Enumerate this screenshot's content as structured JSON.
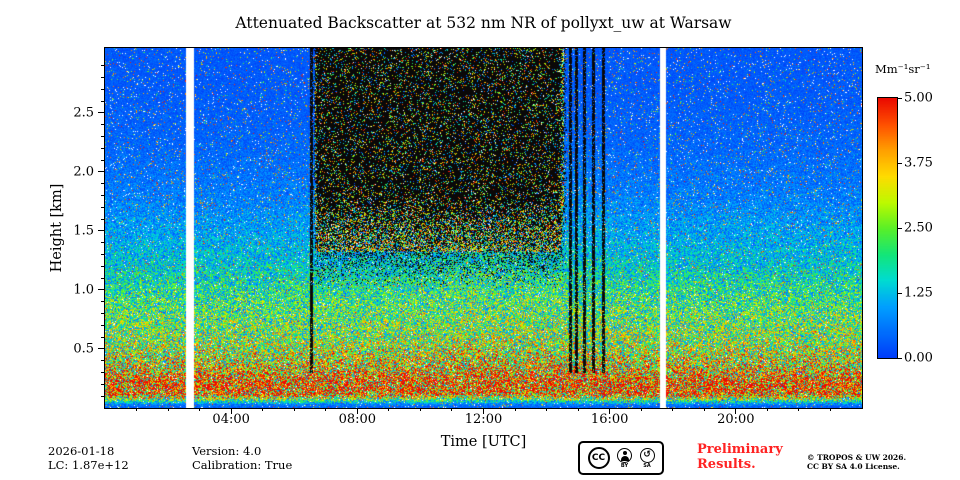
{
  "title": "Attenuated Backscatter at 532 nm NR of pollyxt_uw at Warsaw",
  "chart_data": {
    "type": "heatmap",
    "title": "Attenuated Backscatter at 532 nm NR of pollyxt_uw at Warsaw",
    "xlabel": "Time [UTC]",
    "ylabel": "Height [km]",
    "x_range_hours": [
      0,
      24
    ],
    "y_range_km": [
      0,
      3.05
    ],
    "x_ticks": [
      {
        "t": 4,
        "label": "04:00"
      },
      {
        "t": 8,
        "label": "08:00"
      },
      {
        "t": 12,
        "label": "12:00"
      },
      {
        "t": 16,
        "label": "16:00"
      },
      {
        "t": 20,
        "label": "20:00"
      }
    ],
    "x_minor_step_hours": 1,
    "y_ticks": [
      {
        "h": 0.5,
        "label": "0.5"
      },
      {
        "h": 1.0,
        "label": "1.0"
      },
      {
        "h": 1.5,
        "label": "1.5"
      },
      {
        "h": 2.0,
        "label": "2.0"
      },
      {
        "h": 2.5,
        "label": "2.5"
      }
    ],
    "y_minor_step_km": 0.1,
    "colorbar": {
      "label": "Mm⁻¹sr⁻¹",
      "range": [
        0,
        5
      ],
      "ticks": [
        {
          "v": 5.0,
          "label": "5.00"
        },
        {
          "v": 3.75,
          "label": "3.75"
        },
        {
          "v": 2.5,
          "label": "2.50"
        },
        {
          "v": 1.25,
          "label": "1.25"
        },
        {
          "v": 0.0,
          "label": "0.00"
        }
      ]
    },
    "colormap_stops": [
      [
        0.0,
        0,
        60,
        250
      ],
      [
        0.2,
        0,
        160,
        255
      ],
      [
        0.3,
        0,
        220,
        210
      ],
      [
        0.4,
        20,
        230,
        120
      ],
      [
        0.5,
        90,
        240,
        40
      ],
      [
        0.6,
        190,
        250,
        0
      ],
      [
        0.7,
        255,
        220,
        0
      ],
      [
        0.8,
        255,
        160,
        0
      ],
      [
        0.9,
        255,
        80,
        0
      ],
      [
        1.0,
        235,
        10,
        0
      ]
    ],
    "profile": [
      [
        0.0,
        0.3
      ],
      [
        0.03,
        0.6
      ],
      [
        0.07,
        2.2
      ],
      [
        0.12,
        4.3
      ],
      [
        0.22,
        4.5
      ],
      [
        0.3,
        3.4
      ],
      [
        0.4,
        2.9
      ],
      [
        0.55,
        2.5
      ],
      [
        0.8,
        2.1
      ],
      [
        1.0,
        1.7
      ],
      [
        1.2,
        1.3
      ],
      [
        1.5,
        0.9
      ],
      [
        1.8,
        0.6
      ],
      [
        2.2,
        0.4
      ],
      [
        2.6,
        0.3
      ],
      [
        3.05,
        0.25
      ]
    ],
    "features": {
      "data_gaps_hours": [
        {
          "center": 2.7,
          "width": 0.26
        },
        {
          "center": 17.7,
          "width": 0.2
        }
      ],
      "daytime_noise_block": {
        "t_start": 6.6,
        "t_end": 14.65,
        "h_base_km": 1.0,
        "h_ramp_km": 0.8
      },
      "black_streaks_hours": [
        6.55,
        14.75,
        14.95,
        15.2,
        15.5,
        15.8
      ],
      "surface_layer_peak_km": 0.2,
      "midday_bump": {
        "center_hour": 12.3,
        "sigma_hours": 2.6,
        "amplitude": 0.13
      }
    }
  },
  "annotations": {
    "date": "2026-01-18",
    "lc": "LC: 1.87e+12",
    "version": "Version: 4.0",
    "calibration": "Calibration: True",
    "preliminary_line1": "Preliminary",
    "preliminary_line2": "Results.",
    "copyright_line1": "© TROPOS & UW 2026.",
    "copyright_line2": "CC BY SA 4.0 License."
  },
  "badge": {
    "cc": "CC",
    "by": "BY",
    "sa": "SA"
  },
  "icons": {
    "sa_arrow_glyph": "↺"
  },
  "colors": {
    "preliminary": "#ff2222",
    "axis": "#000000",
    "background": "#ffffff"
  }
}
